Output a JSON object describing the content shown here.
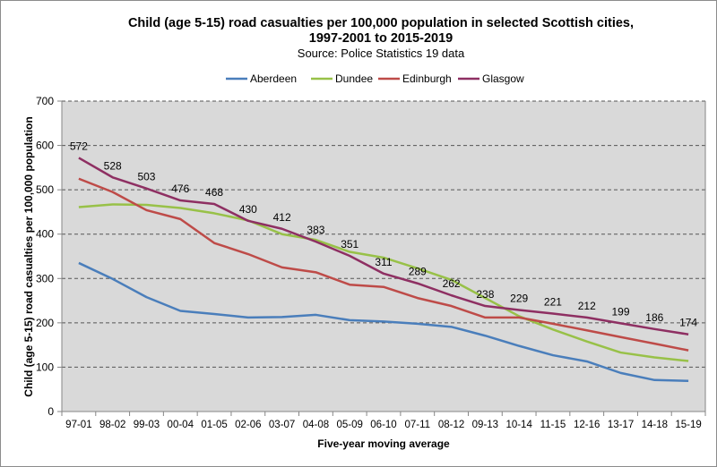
{
  "chart_data": {
    "type": "line",
    "title": "Child (age 5-15) road casualties per 100,000 population in selected Scottish cities, 1997-2001 to 2015-2019",
    "title_lines": [
      "Child (age 5-15) road casualties per 100,000 population in selected Scottish cities,",
      "1997-2001 to 2015-2019"
    ],
    "subtitle": "Source: Police Statistics 19 data",
    "xlabel": "Five-year moving average",
    "ylabel": "Child (age 5-15) road casualties per 100,000 population",
    "ylim": [
      0,
      700
    ],
    "yticks": [
      0,
      100,
      200,
      300,
      400,
      500,
      600,
      700
    ],
    "grid": true,
    "legend_position": "top",
    "categories": [
      "97-01",
      "98-02",
      "99-03",
      "00-04",
      "01-05",
      "02-06",
      "03-07",
      "04-08",
      "05-09",
      "06-10",
      "07-11",
      "08-12",
      "09-13",
      "10-14",
      "11-15",
      "12-16",
      "13-17",
      "14-18",
      "15-19"
    ],
    "series": [
      {
        "name": "Aberdeen",
        "color": "#4a7ebb",
        "values": [
          335,
          299,
          258,
          227,
          220,
          212,
          213,
          218,
          206,
          203,
          198,
          191,
          171,
          148,
          127,
          113,
          87,
          71,
          69
        ]
      },
      {
        "name": "Dundee",
        "color": "#98c148",
        "values": [
          461,
          467,
          466,
          459,
          447,
          431,
          400,
          387,
          360,
          347,
          323,
          297,
          256,
          215,
          185,
          158,
          133,
          122,
          114
        ]
      },
      {
        "name": "Edinburgh",
        "color": "#be4b48",
        "values": [
          525,
          495,
          454,
          434,
          380,
          355,
          325,
          314,
          286,
          281,
          256,
          238,
          212,
          212,
          198,
          183,
          168,
          153,
          138
        ]
      },
      {
        "name": "Glasgow",
        "color": "#8e2f62",
        "values": [
          572,
          528,
          503,
          476,
          468,
          430,
          412,
          383,
          351,
          311,
          289,
          262,
          238,
          229,
          221,
          212,
          199,
          186,
          174
        ],
        "data_labels": true
      }
    ],
    "plot_background": "#d9d9d9"
  }
}
